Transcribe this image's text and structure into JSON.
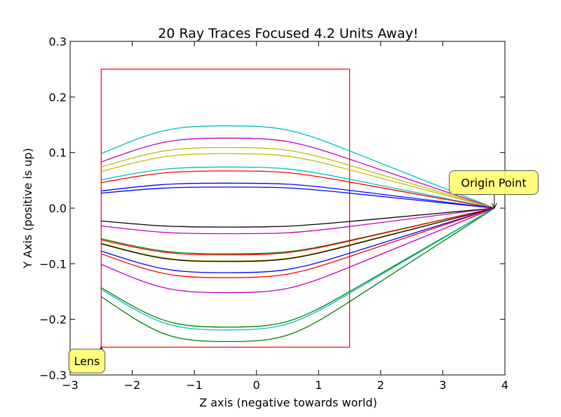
{
  "chart_data": {
    "type": "line",
    "title": "20 Ray Traces Focused 4.2 Units Away!",
    "xlabel": "Z axis (negative towards world)",
    "ylabel": "Y Axis (positive is up)",
    "xlim": [
      -3,
      4
    ],
    "ylim": [
      -0.3,
      0.3
    ],
    "xticks": [
      -3,
      -2,
      -1,
      0,
      1,
      2,
      3,
      4
    ],
    "xtick_labels": [
      "−3",
      "−2",
      "−1",
      "0",
      "1",
      "2",
      "3",
      "4"
    ],
    "yticks": [
      -0.3,
      -0.2,
      -0.1,
      0.0,
      0.1,
      0.2,
      0.3
    ],
    "ytick_labels": [
      "−0.3",
      "−0.2",
      "−0.1",
      "0.0",
      "0.1",
      "0.2",
      "0.3"
    ],
    "grid": false,
    "lens_box": {
      "x": [
        -2.5,
        1.5
      ],
      "y": [
        -0.25,
        0.25
      ],
      "color": "#ff0000"
    },
    "origin_point": [
      3.83,
      0.0
    ],
    "ray_model": {
      "x_start": -2.5,
      "x_peak": -0.5,
      "x_lens_end": 1.5
    },
    "series": [
      {
        "color": "#00bfbf",
        "y_start": 0.098,
        "y_peak": 0.148,
        "y_lens_end": 0.103
      },
      {
        "color": "#bf00bf",
        "y_start": 0.083,
        "y_peak": 0.126,
        "y_lens_end": 0.088
      },
      {
        "color": "#bfbf00",
        "y_start": 0.074,
        "y_peak": 0.109,
        "y_lens_end": 0.077
      },
      {
        "color": "#bfbf00",
        "y_start": 0.066,
        "y_peak": 0.098,
        "y_lens_end": 0.069
      },
      {
        "color": "#00bfbf",
        "y_start": 0.051,
        "y_peak": 0.074,
        "y_lens_end": 0.052
      },
      {
        "color": "#ff0000",
        "y_start": 0.046,
        "y_peak": 0.067,
        "y_lens_end": 0.047
      },
      {
        "color": "#0000ff",
        "y_start": 0.031,
        "y_peak": 0.045,
        "y_lens_end": 0.032
      },
      {
        "color": "#0000ff",
        "y_start": 0.027,
        "y_peak": 0.038,
        "y_lens_end": 0.027
      },
      {
        "color": "#000000",
        "y_start": -0.023,
        "y_peak": -0.034,
        "y_lens_end": -0.024
      },
      {
        "color": "#bf00bf",
        "y_start": -0.032,
        "y_peak": -0.046,
        "y_lens_end": -0.033
      },
      {
        "color": "#008000",
        "y_start": -0.055,
        "y_peak": -0.082,
        "y_lens_end": -0.058
      },
      {
        "color": "#ff0000",
        "y_start": -0.057,
        "y_peak": -0.084,
        "y_lens_end": -0.059
      },
      {
        "color": "#bfbf00",
        "y_start": -0.063,
        "y_peak": -0.095,
        "y_lens_end": -0.066
      },
      {
        "color": "#000000",
        "y_start": -0.064,
        "y_peak": -0.096,
        "y_lens_end": -0.067
      },
      {
        "color": "#0000ff",
        "y_start": -0.077,
        "y_peak": -0.116,
        "y_lens_end": -0.081
      },
      {
        "color": "#ff0000",
        "y_start": -0.082,
        "y_peak": -0.125,
        "y_lens_end": -0.087
      },
      {
        "color": "#bf00bf",
        "y_start": -0.101,
        "y_peak": -0.152,
        "y_lens_end": -0.106
      },
      {
        "color": "#008000",
        "y_start": -0.143,
        "y_peak": -0.214,
        "y_lens_end": -0.15
      },
      {
        "color": "#00bfbf",
        "y_start": -0.146,
        "y_peak": -0.219,
        "y_lens_end": -0.153
      },
      {
        "color": "#008000",
        "y_start": -0.159,
        "y_peak": -0.24,
        "y_lens_end": -0.168
      }
    ],
    "annotations": [
      {
        "text": "Origin Point",
        "target": [
          3.83,
          0.0
        ],
        "text_at": [
          3.82,
          0.046
        ]
      },
      {
        "text": "Lens",
        "target": [
          -2.5,
          -0.25
        ],
        "text_at": [
          -2.73,
          -0.275
        ]
      }
    ],
    "annotation_box_color": "#ffff66"
  }
}
